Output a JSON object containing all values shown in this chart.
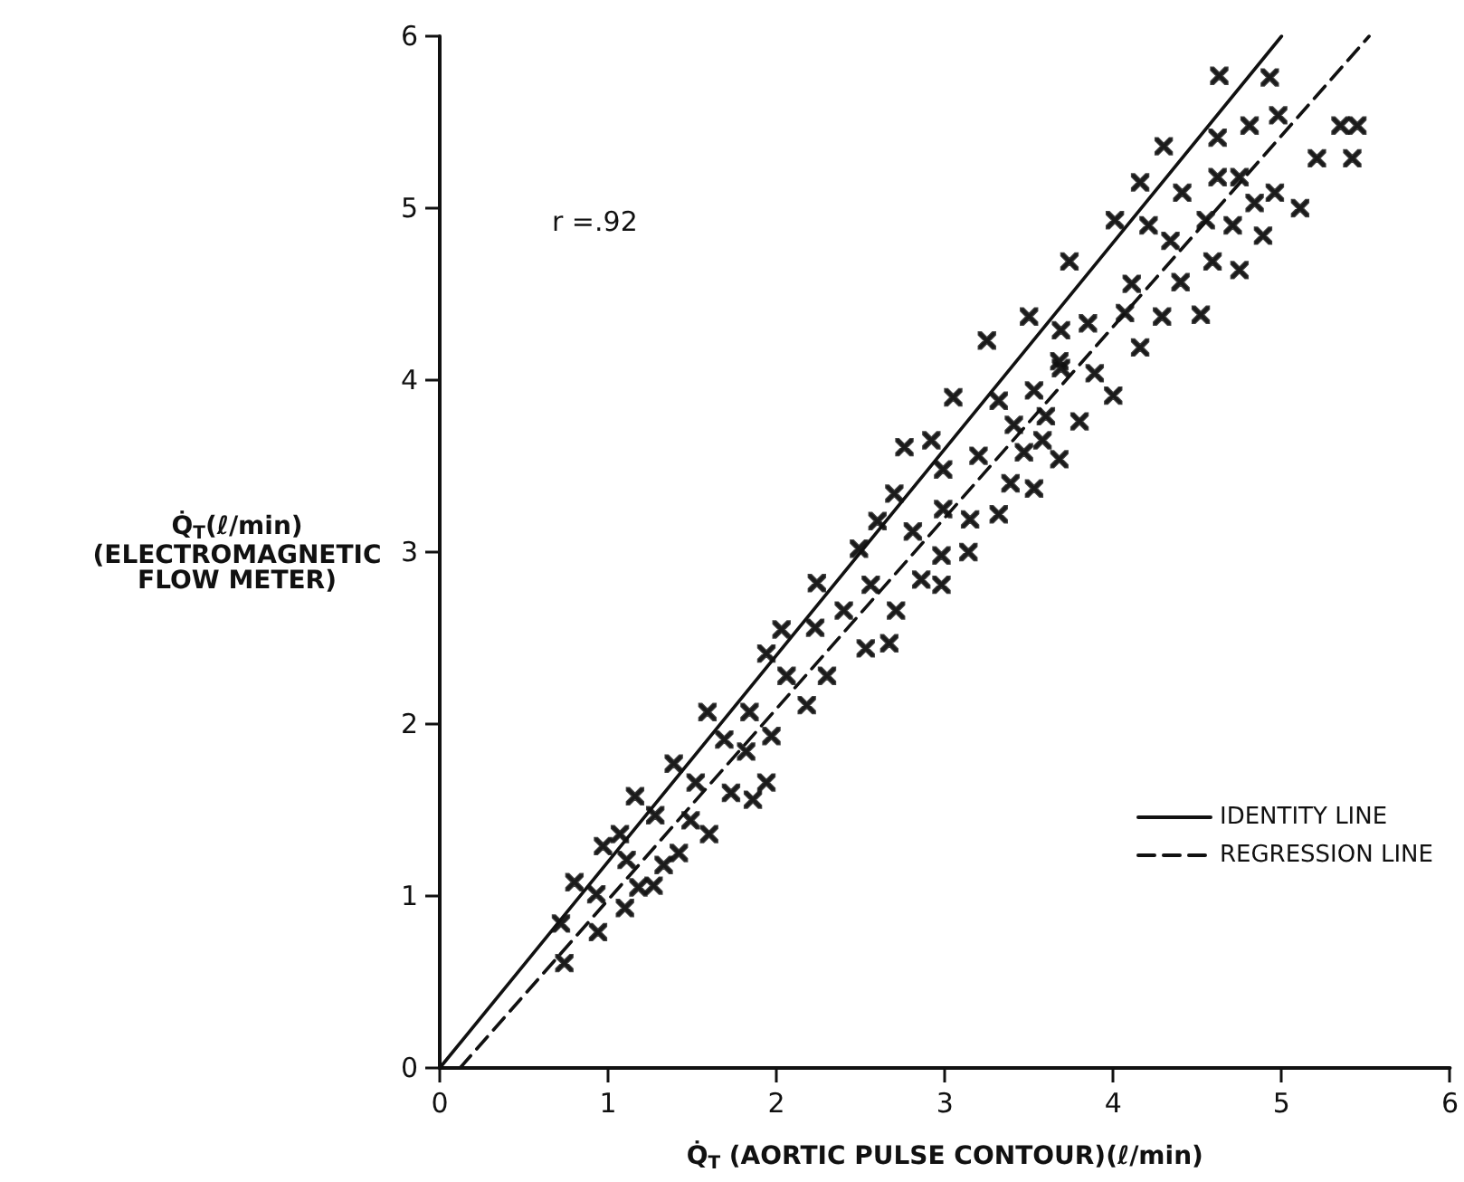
{
  "chart_data": {
    "type": "scatter",
    "xlabel": "Q̇$_{T}$ (AORTIC PULSE CONTOUR)(ℓ/min)",
    "ylabel": "Q̇$_{T}$(ℓ/min)\n(ELECTROMAGNETIC\nFLOW METER)",
    "xlim": [
      0,
      6
    ],
    "ylim": [
      0,
      6
    ],
    "xticks": [
      0,
      1,
      2,
      3,
      4,
      5,
      6
    ],
    "yticks": [
      0,
      1,
      2,
      3,
      4,
      5,
      6
    ],
    "grid": false,
    "legend": "bottom right",
    "annotations": [
      "r =.92"
    ],
    "series": [
      {
        "color": "#111111",
        "marker": "cross",
        "x": [
          0.72,
          0.74,
          0.8,
          0.93,
          0.94,
          0.97,
          1.07,
          1.1,
          1.11,
          1.16,
          1.18,
          1.27,
          1.28,
          1.33,
          1.39,
          1.42,
          1.49,
          1.52,
          1.6,
          1.59,
          1.69,
          1.73,
          1.82,
          1.84,
          1.86,
          1.94,
          1.97,
          2.18,
          1.94,
          2.06,
          2.3,
          2.03,
          2.23,
          2.53,
          2.67,
          2.4,
          2.71,
          2.24,
          2.56,
          2.86,
          2.98,
          2.49,
          2.81,
          2.98,
          3.14,
          2.6,
          2.99,
          3.15,
          3.32,
          2.7,
          2.99,
          3.2,
          2.76,
          2.92,
          3.39,
          3.05,
          3.32,
          3.53,
          3.69,
          3.41,
          3.6,
          3.8,
          3.47,
          3.58,
          3.68,
          3.53,
          3.25,
          3.5,
          3.69,
          3.85,
          4.07,
          4.29,
          4.52,
          4.16,
          3.68,
          3.89,
          4.0,
          3.74,
          4.11,
          4.4,
          4.59,
          4.75,
          4.01,
          4.21,
          4.34,
          4.55,
          4.71,
          4.89,
          4.16,
          4.41,
          4.62,
          4.75,
          4.96,
          4.84,
          5.11,
          4.3,
          4.62,
          4.81,
          4.98,
          5.35,
          5.45,
          5.21,
          5.42,
          4.63,
          4.93
        ],
        "values": [
          0.84,
          0.61,
          1.08,
          1.01,
          0.79,
          1.29,
          1.36,
          0.93,
          1.21,
          1.58,
          1.05,
          1.06,
          1.47,
          1.18,
          1.77,
          1.25,
          1.44,
          1.66,
          1.36,
          2.07,
          1.91,
          1.6,
          1.84,
          2.07,
          1.56,
          1.66,
          1.93,
          2.11,
          2.41,
          2.28,
          2.28,
          2.55,
          2.56,
          2.44,
          2.47,
          2.66,
          2.66,
          2.82,
          2.81,
          2.84,
          2.81,
          3.02,
          3.12,
          2.98,
          3.0,
          3.18,
          3.25,
          3.19,
          3.22,
          3.34,
          3.48,
          3.56,
          3.61,
          3.65,
          3.4,
          3.9,
          3.88,
          3.94,
          4.07,
          3.74,
          3.79,
          3.76,
          3.58,
          3.65,
          3.54,
          3.37,
          4.23,
          4.37,
          4.29,
          4.33,
          4.39,
          4.37,
          4.38,
          4.19,
          4.11,
          4.04,
          3.91,
          4.69,
          4.56,
          4.57,
          4.69,
          4.64,
          4.93,
          4.9,
          4.81,
          4.93,
          4.9,
          4.84,
          5.15,
          5.09,
          5.18,
          5.18,
          5.09,
          5.03,
          5.0,
          5.36,
          5.41,
          5.48,
          5.54,
          5.48,
          5.48,
          5.29,
          5.29,
          5.77,
          5.76
        ]
      },
      {
        "name": "IDENTITY LINE",
        "type": "line",
        "marker": "none",
        "color": "#111111",
        "line_style": "solid",
        "x": [
          0,
          5
        ],
        "values": [
          0,
          6
        ]
      },
      {
        "name": "REGRESSION LINE",
        "type": "line",
        "marker": "none",
        "color": "#111111",
        "line_style": "dashed",
        "x": [
          0.12,
          5.52
        ],
        "values": [
          0,
          6
        ]
      }
    ]
  }
}
